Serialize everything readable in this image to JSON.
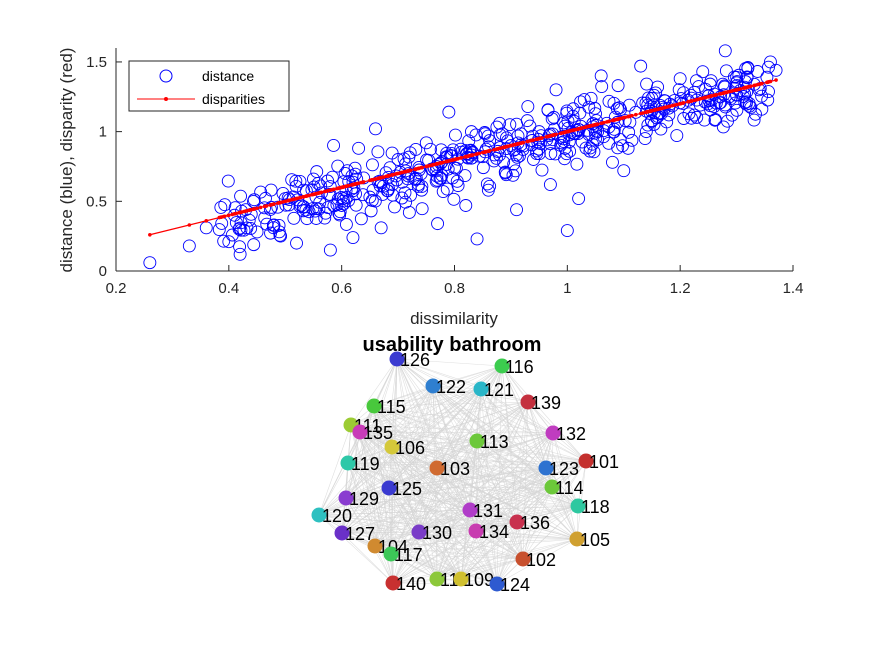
{
  "chart_data": [
    {
      "type": "scatter",
      "xlabel": "dissimilarity",
      "ylabel": "distance (blue), disparity (red)",
      "xlim": [
        0.2,
        1.4
      ],
      "ylim": [
        0,
        1.6
      ],
      "x_ticks": [
        "0.2",
        "0.4",
        "0.6",
        "0.8",
        "1",
        "1.2",
        "1.4"
      ],
      "y_ticks": [
        "0",
        "0.5",
        "1",
        "1.5"
      ],
      "legend_position": "top-left",
      "series": [
        {
          "name": "distance",
          "marker": "open-circle",
          "color": "#0000ff",
          "sample_points": [
            [
              0.26,
              0.06
            ],
            [
              0.33,
              0.18
            ],
            [
              0.36,
              0.31
            ],
            [
              0.4,
              0.21
            ],
            [
              0.41,
              0.4
            ],
            [
              0.42,
              0.12
            ],
            [
              0.43,
              0.44
            ],
            [
              0.45,
              0.28
            ],
            [
              0.48,
              0.33
            ],
            [
              0.5,
              0.52
            ],
            [
              0.52,
              0.2
            ],
            [
              0.55,
              0.66
            ],
            [
              0.57,
              0.38
            ],
            [
              0.58,
              0.15
            ],
            [
              0.6,
              0.47
            ],
            [
              0.61,
              0.72
            ],
            [
              0.62,
              0.24
            ],
            [
              0.63,
              0.88
            ],
            [
              0.65,
              0.53
            ],
            [
              0.66,
              1.02
            ],
            [
              0.67,
              0.31
            ],
            [
              0.69,
              0.62
            ],
            [
              0.7,
              0.8
            ],
            [
              0.72,
              0.42
            ],
            [
              0.73,
              0.66
            ],
            [
              0.75,
              0.92
            ],
            [
              0.77,
              0.34
            ],
            [
              0.78,
              0.57
            ],
            [
              0.79,
              1.14
            ],
            [
              0.8,
              0.74
            ],
            [
              0.82,
              0.47
            ],
            [
              0.83,
              1.0
            ],
            [
              0.84,
              0.23
            ],
            [
              0.85,
              0.82
            ],
            [
              0.86,
              0.58
            ],
            [
              0.88,
              1.06
            ],
            [
              0.89,
              0.71
            ],
            [
              0.9,
              0.9
            ],
            [
              0.91,
              0.44
            ],
            [
              0.93,
              1.18
            ],
            [
              0.94,
              0.8
            ],
            [
              0.95,
              1.0
            ],
            [
              0.97,
              0.62
            ],
            [
              0.98,
              1.3
            ],
            [
              0.99,
              0.92
            ],
            [
              1.0,
              0.29
            ],
            [
              1.01,
              1.11
            ],
            [
              1.02,
              0.52
            ],
            [
              1.03,
              1.23
            ],
            [
              1.04,
              0.86
            ],
            [
              1.06,
              1.4
            ],
            [
              1.07,
              1.06
            ],
            [
              1.08,
              0.78
            ],
            [
              1.09,
              1.33
            ],
            [
              1.1,
              0.72
            ],
            [
              1.11,
              1.19
            ],
            [
              1.13,
              1.47
            ],
            [
              1.14,
              1.0
            ],
            [
              1.16,
              1.32
            ],
            [
              1.18,
              1.12
            ],
            [
              1.2,
              1.38
            ],
            [
              1.22,
              1.24
            ],
            [
              1.24,
              1.43
            ],
            [
              1.26,
              1.18
            ],
            [
              1.28,
              1.58
            ],
            [
              1.3,
              1.35
            ],
            [
              1.32,
              1.46
            ],
            [
              1.34,
              1.3
            ],
            [
              1.36,
              1.5
            ],
            [
              1.37,
              1.44
            ]
          ]
        },
        {
          "name": "disparities",
          "marker": "line-dot",
          "color": "#ff0000",
          "line_start": [
            0.26,
            0.26
          ],
          "line_end": [
            1.37,
            1.37
          ]
        }
      ]
    },
    {
      "type": "network",
      "title": "usability bathroom",
      "nodes": [
        {
          "label": "126",
          "color": "#3a3ad0"
        },
        {
          "label": "116",
          "color": "#3ccc4e"
        },
        {
          "label": "122",
          "color": "#2f7fd0"
        },
        {
          "label": "121",
          "color": "#2ab6c8"
        },
        {
          "label": "139",
          "color": "#c4303e"
        },
        {
          "label": "115",
          "color": "#48c83c"
        },
        {
          "label": "111",
          "color": "#9ccc34"
        },
        {
          "label": "135",
          "color": "#c83cb8"
        },
        {
          "label": "106",
          "color": "#d4c83a"
        },
        {
          "label": "113",
          "color": "#6cc83a"
        },
        {
          "label": "132",
          "color": "#c03cc0"
        },
        {
          "label": "101",
          "color": "#c4302e"
        },
        {
          "label": "119",
          "color": "#2ec8a8"
        },
        {
          "label": "103",
          "color": "#d06a30"
        },
        {
          "label": "123",
          "color": "#2e72d0"
        },
        {
          "label": "125",
          "color": "#3a3ad0"
        },
        {
          "label": "114",
          "color": "#6cc83a"
        },
        {
          "label": "129",
          "color": "#8a3cd0"
        },
        {
          "label": "118",
          "color": "#2ec8a0"
        },
        {
          "label": "131",
          "color": "#b03cc8"
        },
        {
          "label": "120",
          "color": "#2ec0c0"
        },
        {
          "label": "136",
          "color": "#c8304e"
        },
        {
          "label": "134",
          "color": "#c83cb0"
        },
        {
          "label": "127",
          "color": "#6a30c8"
        },
        {
          "label": "130",
          "color": "#7a3cc8"
        },
        {
          "label": "105",
          "color": "#d0a030"
        },
        {
          "label": "104",
          "color": "#d08a30"
        },
        {
          "label": "117",
          "color": "#3cc858"
        },
        {
          "label": "102",
          "color": "#c8502e"
        },
        {
          "label": "140",
          "color": "#c83030"
        },
        {
          "label": "112",
          "color": "#8cc83a"
        },
        {
          "label": "109",
          "color": "#d0c030"
        },
        {
          "label": "124",
          "color": "#2e5ad0"
        }
      ]
    }
  ]
}
